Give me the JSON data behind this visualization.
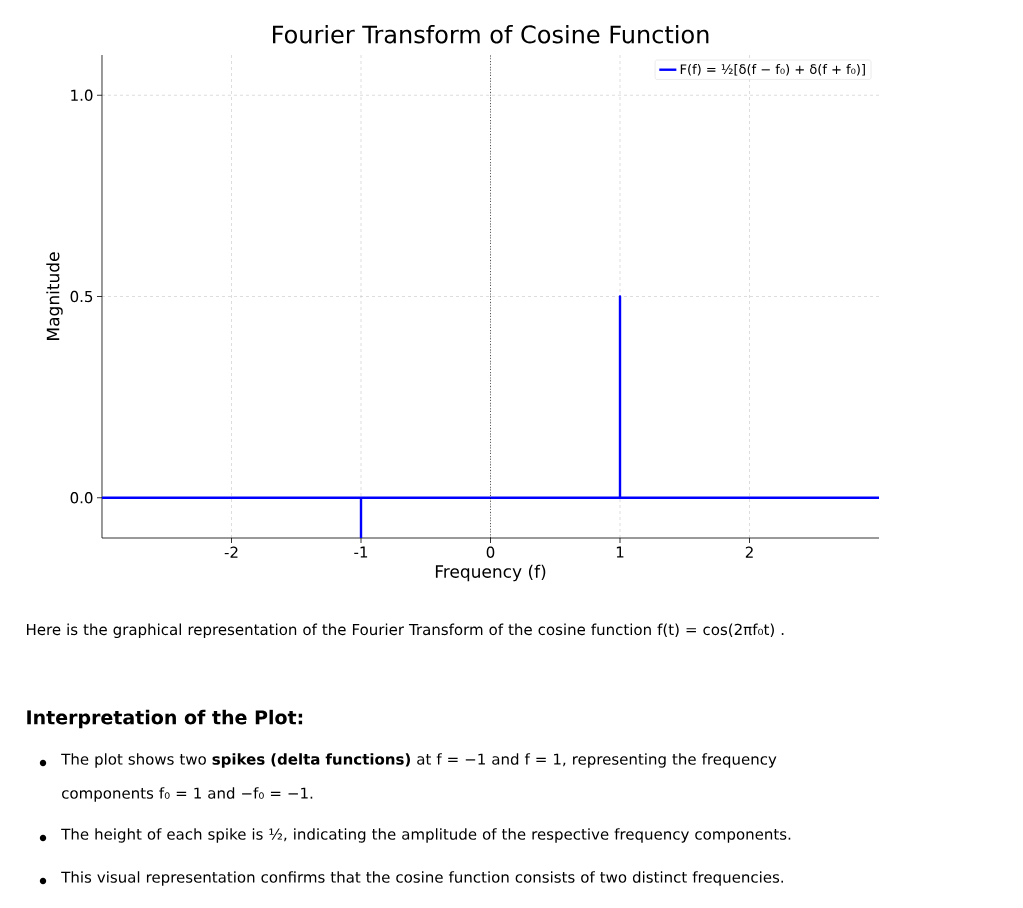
{
  "chart_data": {
    "type": "line",
    "title": "Fourier Transform of Cosine Function",
    "xlabel": "Frequency (f)",
    "ylabel": "Magnitude",
    "xlim": [
      -3,
      3
    ],
    "ylim": [
      -0.1,
      1.1
    ],
    "xticks": [
      -2,
      -1,
      0,
      1,
      2
    ],
    "yticks": [
      {
        "value": 0,
        "label": "0.0"
      },
      {
        "value": 0.5,
        "label": "0.5"
      },
      {
        "value": 1,
        "label": "1.0"
      }
    ],
    "grid": true,
    "legend": "top right",
    "line_style": "solid",
    "marker": "none",
    "series": [
      {
        "name": "F(f) = ½[δ(f − f₀) + δ(f + f₀)]",
        "color": "#0000ff",
        "x": [
          -3,
          -1,
          -1,
          -1,
          1,
          1,
          1,
          3
        ],
        "values": [
          0,
          0,
          -0.1,
          0,
          0,
          0.5,
          0,
          0
        ]
      }
    ],
    "ref_lines": [
      {
        "axis": "x",
        "value": 0,
        "color": "#000000",
        "line_style": "dotted"
      }
    ],
    "annotations": [
      "Here is the graphical representation of the Fourier Transform of the cosine function f(t) = cos(2πf₀t) .",
      "Interpretation of the Plot:",
      "The plot shows two **spikes (delta functions)** at f = −1 and f = 1, representing the frequency components f₀ = 1 and −f₀ = −1.",
      "The height of each spike is ½, indicating the amplitude of the respective frequency components.",
      "This visual representation confirms that the cosine function consists of two distinct frequencies."
    ]
  }
}
